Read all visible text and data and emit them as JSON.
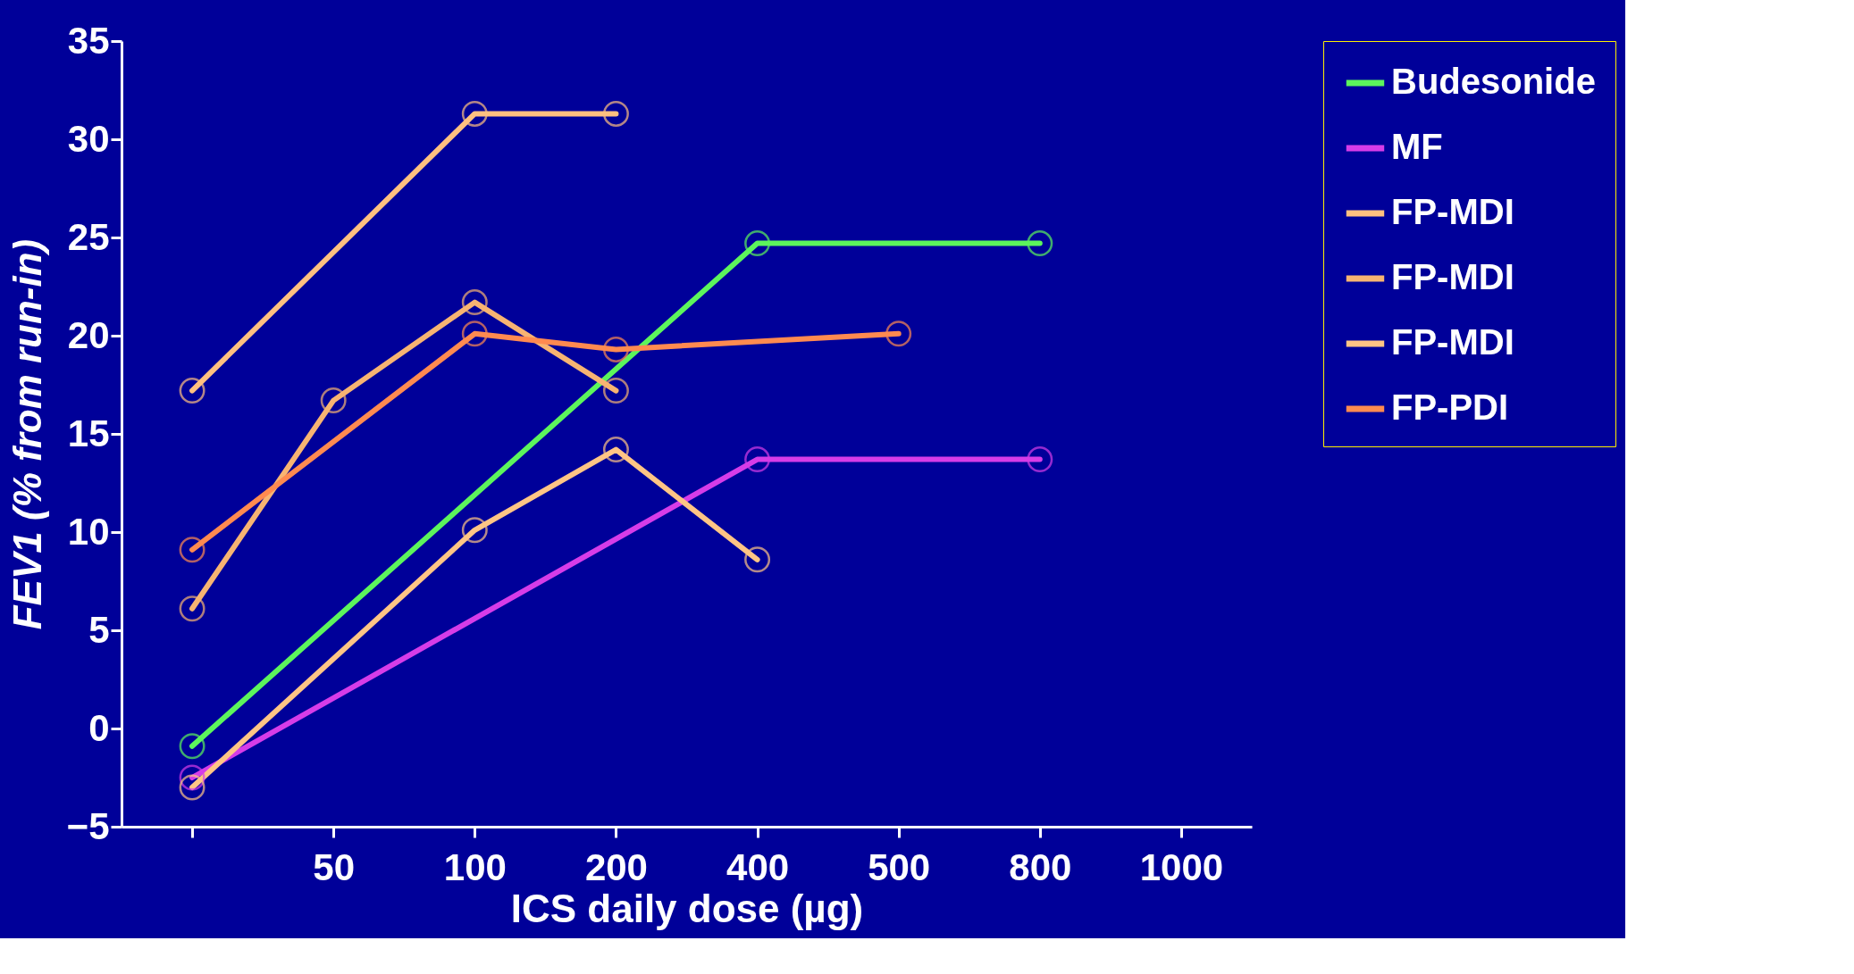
{
  "chart_data": {
    "type": "line",
    "xlabel": "ICS daily dose (µg)",
    "ylabel": "FEV1 (% from run-in)",
    "categories": [
      null,
      "50",
      "100",
      "200",
      "400",
      "500",
      "800",
      "1000"
    ],
    "series": [
      {
        "name": "Budesonide",
        "color": "#5cf55c",
        "values": [
          -0.9,
          null,
          null,
          null,
          24.7,
          null,
          24.7,
          null
        ]
      },
      {
        "name": "MF",
        "color": "#d63ce8",
        "values": [
          -2.5,
          null,
          null,
          null,
          13.7,
          null,
          13.7,
          null
        ]
      },
      {
        "name": "FP-MDI",
        "color": "#ffc080",
        "values": [
          17.2,
          null,
          31.3,
          31.3,
          null,
          null,
          null,
          null
        ]
      },
      {
        "name": "FP-MDI",
        "color": "#f7b472",
        "values": [
          6.1,
          16.7,
          21.7,
          17.2,
          null,
          null,
          null,
          null
        ]
      },
      {
        "name": "FP-MDI",
        "color": "#ffc585",
        "values": [
          -3.0,
          null,
          10.1,
          14.2,
          8.6,
          null,
          null,
          null
        ]
      },
      {
        "name": "FP-PDI",
        "color": "#ff8a50",
        "values": [
          9.1,
          null,
          20.1,
          19.3,
          null,
          20.1,
          null,
          null
        ]
      }
    ],
    "ylim": [
      -5,
      35
    ],
    "yticks": [
      -5,
      0,
      5,
      10,
      15,
      20,
      25,
      30,
      35
    ],
    "grid": false,
    "legend": "top right",
    "marker": "circle",
    "line_style": "solid"
  }
}
